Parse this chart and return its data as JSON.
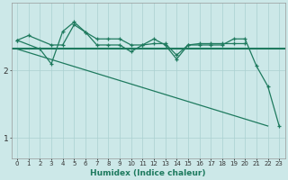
{
  "xlabel": "Humidex (Indice chaleur)",
  "x_values": [
    0,
    1,
    2,
    3,
    4,
    5,
    6,
    7,
    8,
    9,
    10,
    11,
    12,
    13,
    14,
    15,
    16,
    17,
    18,
    19,
    20,
    21,
    22,
    23
  ],
  "line1_y": [
    2.45,
    2.52,
    null,
    2.38,
    2.38,
    2.68,
    2.57,
    2.47,
    2.47,
    2.47,
    2.38,
    2.38,
    2.4,
    2.4,
    2.23,
    2.38,
    2.4,
    2.4,
    2.4,
    2.4,
    2.4,
    null,
    null,
    null
  ],
  "line2_y": [
    2.45,
    null,
    2.32,
    2.1,
    2.58,
    2.72,
    2.57,
    2.38,
    2.38,
    2.38,
    2.28,
    2.38,
    2.47,
    2.38,
    2.17,
    2.38,
    2.38,
    2.38,
    2.38,
    2.47,
    2.47,
    2.07,
    1.77,
    1.18
  ],
  "flat_line_y": 2.32,
  "diagonal_start_x": 0,
  "diagonal_start_y": 2.32,
  "diagonal_end_x": 22,
  "diagonal_end_y": 1.18,
  "line_color": "#1e7a5e",
  "bg_color": "#cce8e8",
  "grid_color": "#aad0d0",
  "ylim": [
    0.7,
    3.0
  ],
  "yticks": [
    1,
    2
  ],
  "xlim": [
    -0.5,
    23.5
  ],
  "marker_size": 3.0,
  "linewidth": 0.9,
  "flat_linewidth": 1.5
}
